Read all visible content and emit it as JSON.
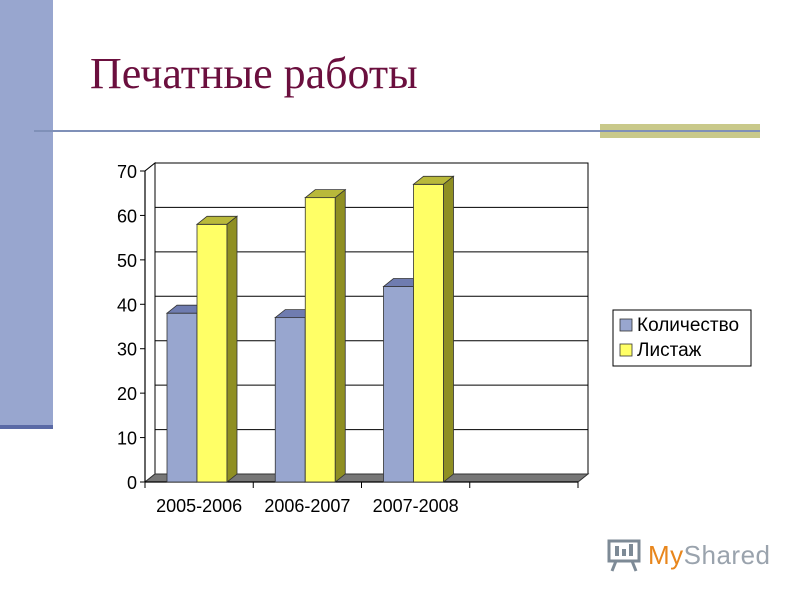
{
  "slide": {
    "title": "Печатные работы",
    "logo": {
      "icon": "presentation-icon",
      "text_main": "MyShared",
      "text_prefix": "My",
      "text_suffix": "Shared"
    }
  },
  "colors": {
    "title": "#6b0f3e",
    "sidebar": "#98a6cf",
    "series_1": "#98a6cf",
    "series_2": "#ffff66",
    "floor": "#777777"
  },
  "chart_data": {
    "type": "bar",
    "categories": [
      "2005-2006",
      "2006-2007",
      "2007-2008"
    ],
    "series": [
      {
        "name": "Количество",
        "values": [
          38,
          37,
          44
        ]
      },
      {
        "name": "Листаж",
        "values": [
          58,
          64,
          67
        ]
      }
    ],
    "yticks": [
      0,
      10,
      20,
      30,
      40,
      50,
      60,
      70
    ],
    "ylim": [
      0,
      70
    ],
    "grid": true,
    "legend_position": "right",
    "title": "",
    "xlabel": "",
    "ylabel": ""
  }
}
